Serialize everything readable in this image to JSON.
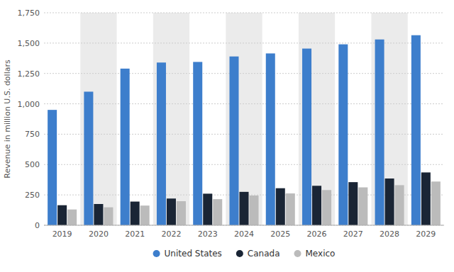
{
  "chart_data": {
    "type": "bar",
    "categories": [
      "2019",
      "2020",
      "2021",
      "2022",
      "2023",
      "2024",
      "2025",
      "2026",
      "2027",
      "2028",
      "2029"
    ],
    "series": [
      {
        "name": "United States",
        "color": "#3D7ECC",
        "values": [
          950,
          1100,
          1290,
          1340,
          1345,
          1390,
          1415,
          1455,
          1490,
          1530,
          1565
        ]
      },
      {
        "name": "Canada",
        "color": "#1A2535",
        "values": [
          165,
          175,
          195,
          220,
          260,
          275,
          305,
          325,
          355,
          385,
          435
        ]
      },
      {
        "name": "Mexico",
        "color": "#BBBBBB",
        "values": [
          130,
          148,
          162,
          198,
          215,
          245,
          262,
          290,
          312,
          330,
          360
        ]
      }
    ],
    "y_label": "Revenue in million U.S. dollars",
    "ylim": [
      0,
      1750
    ],
    "yticks": [
      0,
      250,
      500,
      750,
      {
        "value": 1000,
        "label": "1,000"
      },
      {
        "value": 1250,
        "label": "1,250"
      },
      {
        "value": 1500,
        "label": "1,500"
      },
      {
        "value": 1750,
        "label": "1,750"
      }
    ],
    "grid": true,
    "legend": "bottom"
  }
}
